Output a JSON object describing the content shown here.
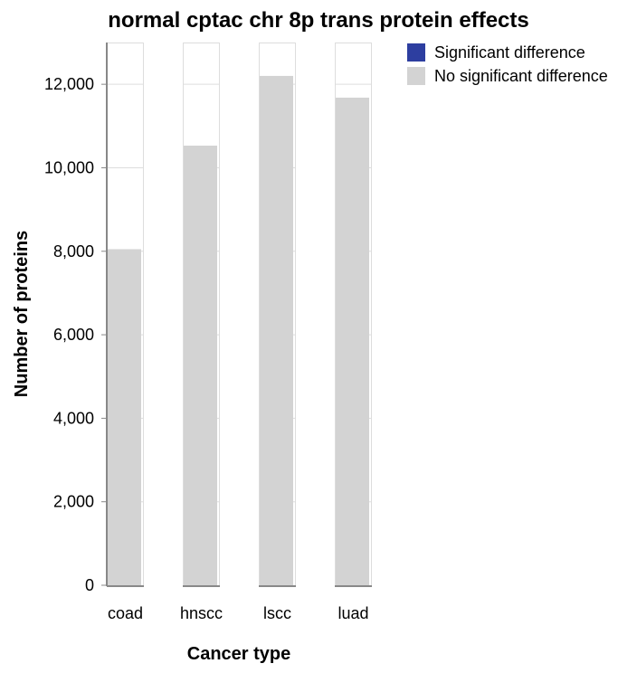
{
  "chart_data": {
    "type": "bar",
    "stacked": true,
    "title": "normal cptac chr 8p trans protein effects",
    "xlabel": "Cancer type",
    "ylabel": "Number of proteins",
    "categories": [
      "coad",
      "hnscc",
      "lscc",
      "luad"
    ],
    "series": [
      {
        "name": "Significant difference",
        "color": "#2d3ea0",
        "values": [
          0,
          0,
          0,
          0
        ]
      },
      {
        "name": "No significant difference",
        "color": "#d3d3d3",
        "values": [
          8050,
          10530,
          12200,
          11680
        ]
      }
    ],
    "ylim": [
      0,
      13000
    ],
    "yticks": [
      0,
      2000,
      4000,
      6000,
      8000,
      10000,
      12000
    ],
    "ytick_labels": [
      "0",
      "2,000",
      "4,000",
      "6,000",
      "8,000",
      "10,000",
      "12,000"
    ],
    "grid": true,
    "legend_position": "top-right"
  }
}
